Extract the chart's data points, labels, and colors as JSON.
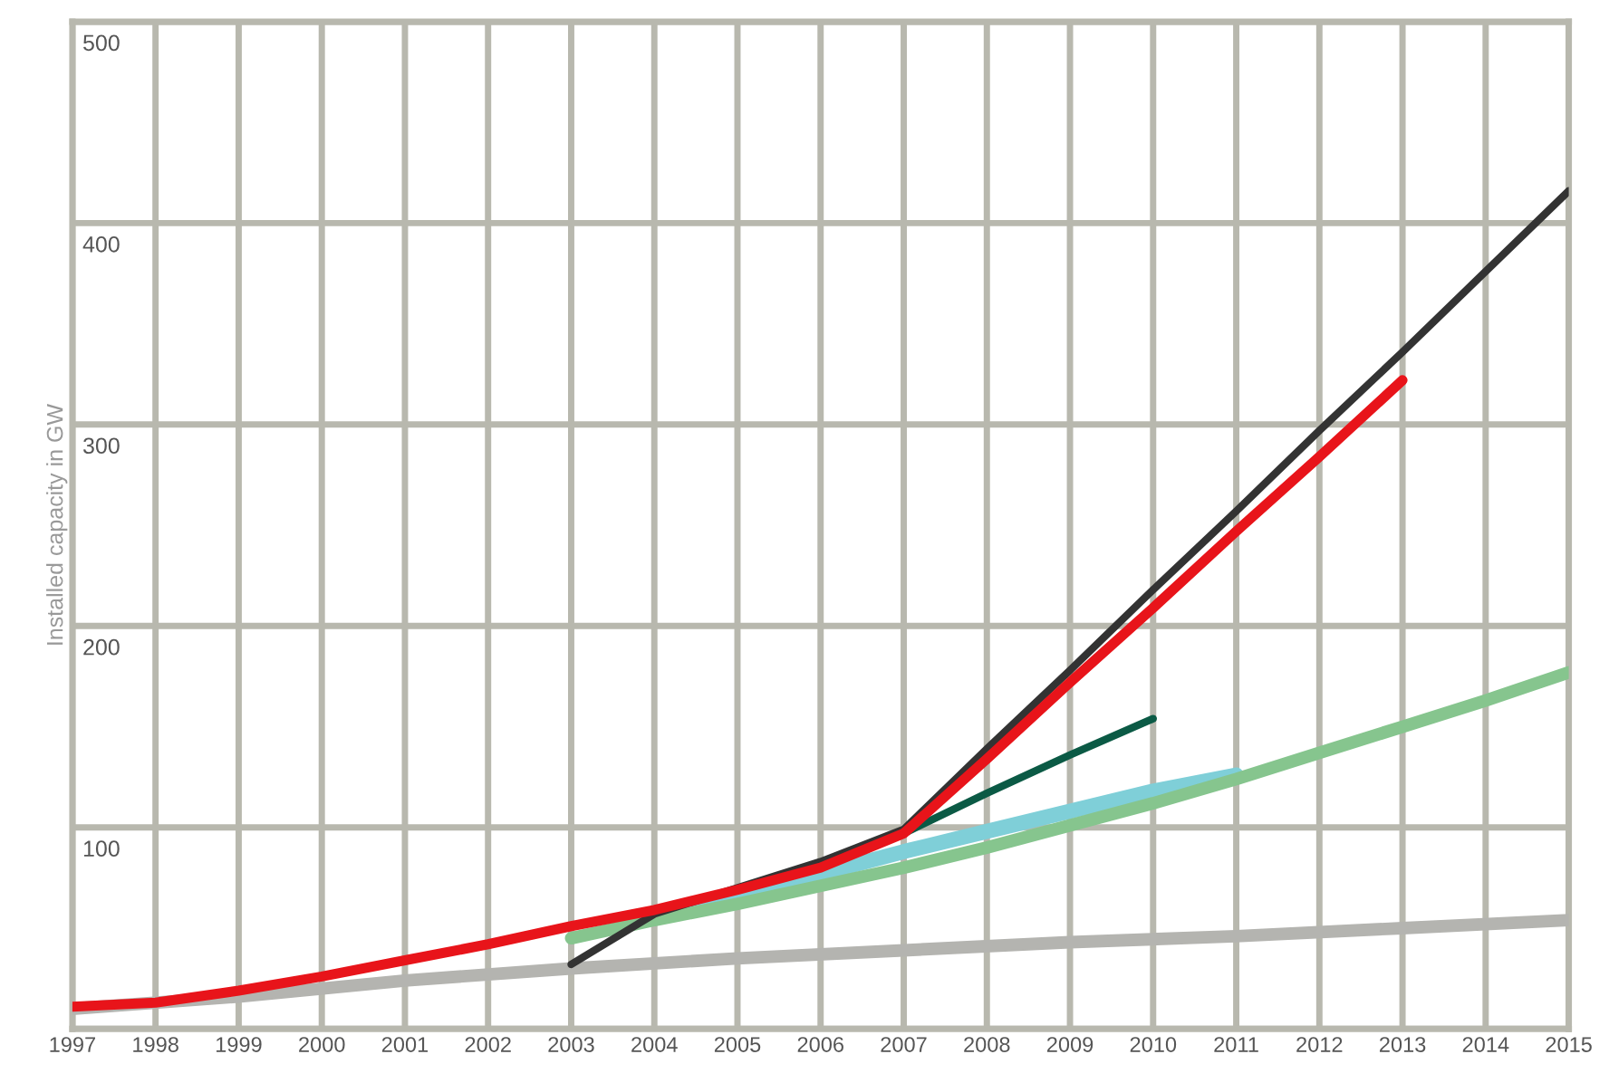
{
  "chart_data": {
    "type": "line",
    "ylabel": "Installed capacity in GW",
    "series": [
      {
        "color": "#b4b4b0",
        "x": [
          1997,
          1999,
          2001,
          2003,
          2005,
          2007,
          2009,
          2011,
          2013,
          2015
        ],
        "values": [
          10,
          16,
          24,
          30,
          35,
          39,
          43,
          46,
          50,
          54
        ]
      },
      {
        "color": "#7fcfd8",
        "x": [
          2004,
          2005,
          2006,
          2007,
          2008,
          2009,
          2010,
          2011
        ],
        "values": [
          55,
          66,
          77,
          88,
          98,
          108,
          118,
          126
        ]
      },
      {
        "color": "#86c58e",
        "x": [
          2003,
          2004,
          2005,
          2006,
          2007,
          2008,
          2009,
          2010,
          2011,
          2012,
          2013,
          2014,
          2015
        ],
        "values": [
          45,
          54,
          62,
          71,
          80,
          90,
          101,
          112,
          124,
          137,
          150,
          163,
          177
        ]
      },
      {
        "color": "#0b5a45",
        "x": [
          2007,
          2008,
          2009,
          2010
        ],
        "values": [
          97,
          117,
          136,
          154
        ]
      },
      {
        "color": "#333333",
        "x": [
          2003,
          2004,
          2005,
          2006,
          2007,
          2008,
          2009,
          2010,
          2011,
          2012,
          2013,
          2014,
          2015
        ],
        "values": [
          32,
          57,
          70,
          83,
          99,
          139,
          178,
          218,
          257,
          297,
          336,
          376,
          416
        ]
      },
      {
        "color": "#e8141a",
        "x": [
          1997,
          1998,
          1999,
          2000,
          2001,
          2002,
          2003,
          2004,
          2005,
          2006,
          2007,
          2008,
          2009,
          2010,
          2011,
          2012,
          2013
        ],
        "values": [
          11,
          13,
          19,
          26,
          34,
          42,
          51,
          59,
          69,
          80,
          97,
          134,
          172,
          209,
          247,
          284,
          322
        ]
      }
    ],
    "xlim": [
      1997,
      2015
    ],
    "xticks": [
      1997,
      1998,
      1999,
      2000,
      2001,
      2002,
      2003,
      2004,
      2005,
      2006,
      2007,
      2008,
      2009,
      2010,
      2011,
      2012,
      2013,
      2014,
      2015
    ],
    "ylim": [
      0,
      500
    ],
    "yticks": [
      {
        "value": 0,
        "label": null
      },
      100,
      200,
      300,
      400,
      500
    ],
    "grid": true,
    "legend": false,
    "marker": "none",
    "line_style": "solid"
  }
}
